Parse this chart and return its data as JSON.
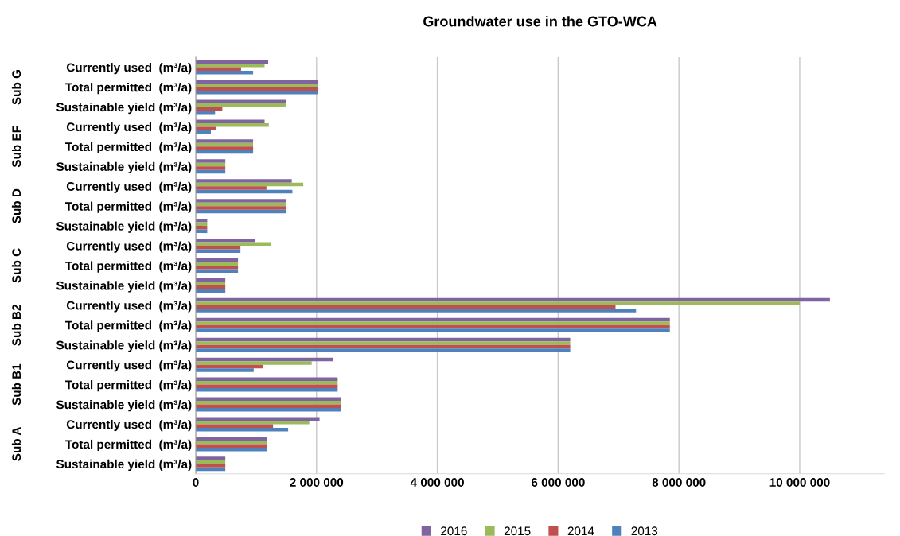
{
  "chart_data": {
    "type": "bar",
    "orientation": "horizontal",
    "title": "Groundwater use in the GTO-WCA",
    "categories": [
      "Currently used  (m³/a)",
      "Total permitted  (m³/a)",
      "Sustainable yield (m³/a)",
      "Currently used  (m³/a)",
      "Total permitted  (m³/a)",
      "Sustainable yield (m³/a)",
      "Currently used  (m³/a)",
      "Total permitted  (m³/a)",
      "Sustainable yield (m³/a)",
      "Currently used  (m³/a)",
      "Total permitted  (m³/a)",
      "Sustainable yield (m³/a)",
      "Currently used  (m³/a)",
      "Total permitted  (m³/a)",
      "Sustainable yield (m³/a)",
      "Currently used  (m³/a)",
      "Total permitted  (m³/a)",
      "Sustainable yield (m³/a)",
      "Currently used  (m³/a)",
      "Total permitted  (m³/a)",
      "Sustainable yield (m³/a)"
    ],
    "annotations": [
      "Sub G",
      "Sub EF",
      "Sub D",
      "Sub C",
      "Sub B2",
      "Sub B1",
      "Sub A"
    ],
    "series": [
      {
        "name": "2016",
        "color": "#8064a2",
        "values": [
          1200000,
          2020000,
          1500000,
          1140000,
          950000,
          490000,
          1590000,
          1500000,
          190000,
          980000,
          700000,
          490000,
          10500000,
          7850000,
          6200000,
          2270000,
          2350000,
          2400000,
          2050000,
          1180000,
          490000
        ]
      },
      {
        "name": "2015",
        "color": "#9bbb59",
        "values": [
          1140000,
          2020000,
          1500000,
          1210000,
          950000,
          490000,
          1780000,
          1500000,
          190000,
          1240000,
          700000,
          490000,
          10000000,
          7850000,
          6200000,
          1920000,
          2350000,
          2400000,
          1880000,
          1180000,
          490000
        ]
      },
      {
        "name": "2014",
        "color": "#c0504d",
        "values": [
          750000,
          2020000,
          440000,
          340000,
          950000,
          490000,
          1170000,
          1500000,
          190000,
          740000,
          700000,
          490000,
          6950000,
          7850000,
          6200000,
          1120000,
          2350000,
          2400000,
          1280000,
          1180000,
          490000
        ]
      },
      {
        "name": "2013",
        "color": "#4f81bd",
        "values": [
          950000,
          2020000,
          320000,
          250000,
          950000,
          490000,
          1600000,
          1500000,
          190000,
          740000,
          700000,
          490000,
          7290000,
          7850000,
          6200000,
          960000,
          2350000,
          2400000,
          1530000,
          1180000,
          490000
        ]
      }
    ],
    "xlim": [
      0,
      11400000
    ],
    "xticks": [
      0,
      {
        "value": 2000000,
        "label": "2 000 000"
      },
      {
        "value": 4000000,
        "label": "4 000 000"
      },
      {
        "value": 6000000,
        "label": "6 000 000"
      },
      {
        "value": 8000000,
        "label": "8 000 000"
      },
      {
        "value": 10000000,
        "label": "10 000 000"
      }
    ],
    "grid": "x",
    "legend": "bottom"
  }
}
